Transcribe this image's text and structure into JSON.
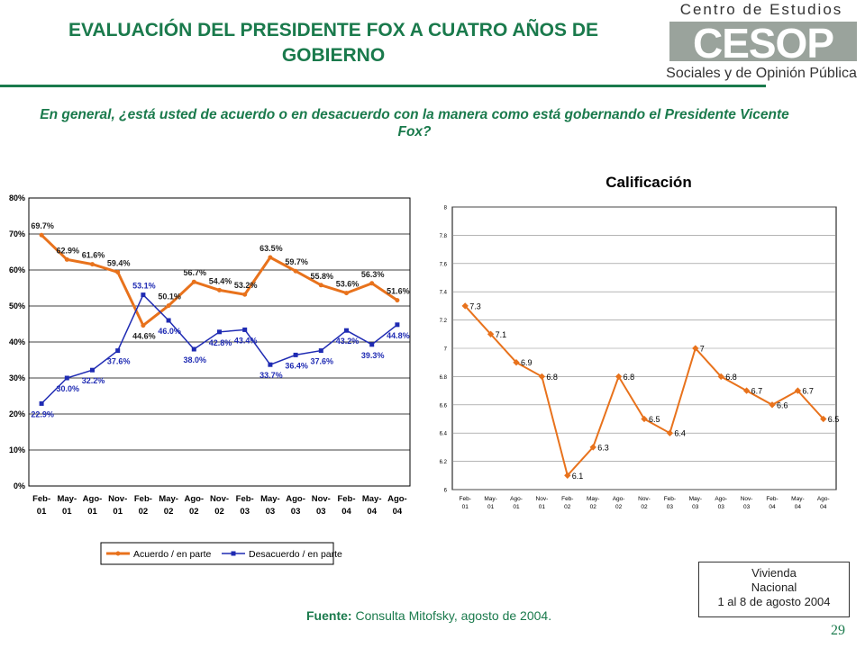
{
  "header": {
    "title": "EVALUACIÓN DEL PRESIDENTE FOX A CUATRO AÑOS DE GOBIERNO",
    "logo_top": "Centro de Estudios",
    "logo_mark": "CESOP",
    "logo_bottom": "Sociales y de Opinión Pública"
  },
  "question": "En general, ¿está usted de acuerdo o en desacuerdo con la manera como está gobernando el Presidente Vicente Fox?",
  "footer": {
    "source_label": "Fuente:",
    "source_text": " Consulta Mitofsky,  agosto de 2004.",
    "box_line1": "Vivienda",
    "box_line2": "Nacional",
    "box_line3": "1 al 8 de agosto 2004",
    "page_number": "29"
  },
  "colors": {
    "green": "#1a7a4c",
    "orange": "#e8721c",
    "blue": "#1f2bb3"
  },
  "chart_data": [
    {
      "type": "line",
      "title": "",
      "categories": [
        "Feb-01",
        "May-01",
        "Ago-01",
        "Nov-01",
        "Feb-02",
        "May-02",
        "Ago-02",
        "Nov-02",
        "Feb-03",
        "May-03",
        "Ago-03",
        "Nov-03",
        "Feb-04",
        "May-04",
        "Ago-04"
      ],
      "series": [
        {
          "name": "Acuerdo / en parte",
          "values": [
            69.7,
            62.9,
            61.6,
            59.4,
            44.6,
            50.1,
            56.7,
            54.4,
            53.2,
            63.5,
            59.7,
            55.8,
            53.6,
            56.3,
            51.6
          ],
          "color": "#e8721c",
          "labels": [
            "69.7%",
            "62.9%",
            "61.6%",
            "59.4%",
            "44.6%",
            "50.1%",
            "56.7%",
            "54.4%",
            "53.2%",
            "63.5%",
            "59.7%",
            "55.8%",
            "53.6%",
            "56.3%",
            "51.6%"
          ]
        },
        {
          "name": "Desacuerdo / en parte",
          "values": [
            22.9,
            30.0,
            32.2,
            37.6,
            53.1,
            46.0,
            38.0,
            42.8,
            43.4,
            33.7,
            36.4,
            37.6,
            43.2,
            39.3,
            44.8
          ],
          "color": "#1f2bb3",
          "labels": [
            "22.9%",
            "30.0%",
            "32.2%",
            "37.6%",
            "53.1%",
            "46.0%",
            "38.0%",
            "42.8%",
            "43.4%",
            "33.7%",
            "36.4%",
            "37.6%",
            "43.2%",
            "39.3%",
            "44.8%"
          ]
        }
      ],
      "ylim": [
        0,
        80
      ],
      "yticks": [
        "0%",
        "10%",
        "20%",
        "30%",
        "40%",
        "50%",
        "60%",
        "70%",
        "80%"
      ],
      "legend": "bottom",
      "grid": true
    },
    {
      "type": "line",
      "title": "Calificación",
      "categories": [
        "Feb-01",
        "May-01",
        "Ago-01",
        "Nov-01",
        "Feb-02",
        "May-02",
        "Ago-02",
        "Nov-02",
        "Feb-03",
        "May-03",
        "Ago-03",
        "Nov-03",
        "Feb-04",
        "May-04",
        "Ago-04"
      ],
      "series": [
        {
          "name": "",
          "values": [
            7.3,
            7.1,
            6.9,
            6.8,
            6.1,
            6.3,
            6.8,
            6.5,
            6.4,
            7.0,
            6.8,
            6.7,
            6.6,
            6.7,
            6.5
          ],
          "color": "#e8721c",
          "labels": [
            "7.3",
            "7.1",
            "6.9",
            "6.8",
            "6.1",
            "6.3",
            "6.8",
            "6.5",
            "6.4",
            "7",
            "6.8",
            "6.7",
            "6.6",
            "6.7",
            "6.5"
          ]
        }
      ],
      "ylim": [
        6,
        8
      ],
      "yticks": [
        "6",
        "6.2",
        "6.4",
        "6.6",
        "6.8",
        "7",
        "7.2",
        "7.4",
        "7.6",
        "7.8",
        "8"
      ],
      "legend": "none",
      "grid": true
    }
  ]
}
